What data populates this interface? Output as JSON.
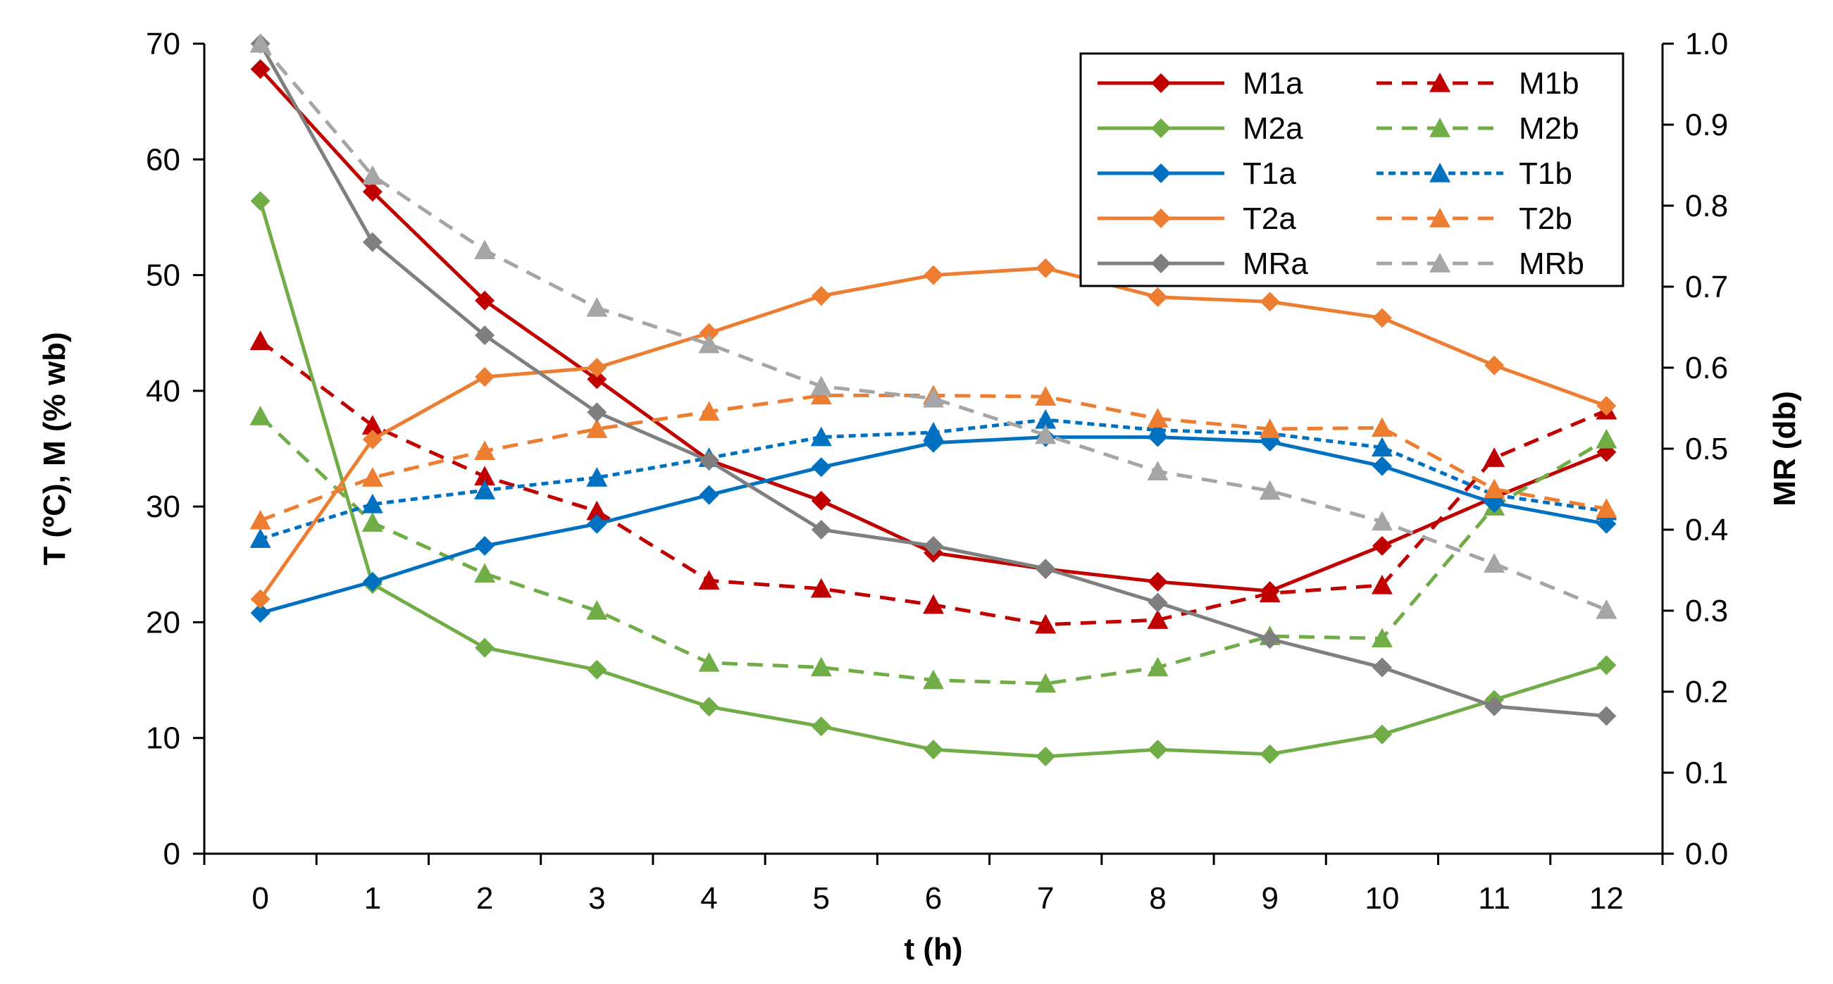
{
  "chart_data": {
    "type": "line",
    "x": [
      0,
      1,
      2,
      3,
      4,
      5,
      6,
      7,
      8,
      9,
      10,
      11,
      12
    ],
    "xlabel": "t (h)",
    "ylabel": "T (ºC), M (% wb)",
    "y2label": "MR (db)",
    "xlim": [
      -0.5,
      12.5
    ],
    "ylim": [
      0,
      70
    ],
    "y2lim": [
      0,
      1
    ],
    "xticks": [
      "0",
      "1",
      "2",
      "3",
      "4",
      "5",
      "6",
      "7",
      "8",
      "9",
      "10",
      "11",
      "12"
    ],
    "yticks": [
      "0",
      "10",
      "20",
      "30",
      "40",
      "50",
      "60",
      "70"
    ],
    "y2ticks": [
      "0.0",
      "0.1",
      "0.2",
      "0.3",
      "0.4",
      "0.5",
      "0.6",
      "0.7",
      "0.8",
      "0.9",
      "1.0"
    ],
    "grid": false,
    "legend_position": "top-right",
    "series": [
      {
        "name": "M1a",
        "axis": "left",
        "color": "#C00000",
        "dash": "solid",
        "marker": "diamond",
        "values": [
          67.8,
          57.2,
          47.8,
          41.0,
          34.0,
          30.5,
          26.0,
          24.6,
          23.5,
          22.7,
          26.6,
          30.8,
          34.7
        ]
      },
      {
        "name": "M1b",
        "axis": "left",
        "color": "#C00000",
        "dash": "dashed",
        "marker": "triangle",
        "values": [
          44.3,
          37.0,
          32.6,
          29.6,
          23.6,
          22.9,
          21.5,
          19.8,
          20.2,
          22.5,
          23.2,
          34.2,
          38.3
        ]
      },
      {
        "name": "M2a",
        "axis": "left",
        "color": "#70AD47",
        "dash": "solid",
        "marker": "diamond",
        "values": [
          56.4,
          23.3,
          17.8,
          15.9,
          12.7,
          11.0,
          9.0,
          8.4,
          9.0,
          8.6,
          10.3,
          13.3,
          16.3
        ]
      },
      {
        "name": "M2b",
        "axis": "left",
        "color": "#70AD47",
        "dash": "dashed",
        "marker": "triangle",
        "values": [
          37.8,
          28.6,
          24.2,
          21.0,
          16.5,
          16.1,
          15.0,
          14.7,
          16.1,
          18.8,
          18.6,
          30.0,
          35.8
        ]
      },
      {
        "name": "T1a",
        "axis": "left",
        "color": "#0070C0",
        "dash": "solid",
        "marker": "diamond",
        "values": [
          20.8,
          23.5,
          26.6,
          28.5,
          31.0,
          33.4,
          35.5,
          36.0,
          36.0,
          35.6,
          33.5,
          30.3,
          28.5
        ]
      },
      {
        "name": "T1b",
        "axis": "left",
        "color": "#0070C0",
        "dash": "dotted",
        "marker": "triangle",
        "values": [
          27.2,
          30.2,
          31.4,
          32.5,
          34.2,
          36.0,
          36.4,
          37.5,
          36.6,
          36.3,
          35.1,
          31.0,
          29.6
        ]
      },
      {
        "name": "T2a",
        "axis": "left",
        "color": "#ED7D31",
        "dash": "solid",
        "marker": "diamond",
        "values": [
          22.0,
          35.8,
          41.2,
          42.0,
          45.0,
          48.2,
          50.0,
          50.6,
          48.1,
          47.7,
          46.3,
          42.2,
          38.7
        ]
      },
      {
        "name": "T2b",
        "axis": "left",
        "color": "#ED7D31",
        "dash": "dashed",
        "marker": "triangle",
        "values": [
          28.8,
          32.5,
          34.8,
          36.7,
          38.2,
          39.6,
          39.6,
          39.5,
          37.6,
          36.7,
          36.8,
          31.5,
          29.8
        ]
      },
      {
        "name": "MRa",
        "axis": "right",
        "color": "#7F7F7F",
        "dash": "solid",
        "marker": "diamond",
        "values": [
          1.0,
          0.755,
          0.64,
          0.545,
          0.485,
          0.4,
          0.38,
          0.352,
          0.31,
          0.265,
          0.23,
          0.182,
          0.17
        ]
      },
      {
        "name": "MRb",
        "axis": "right",
        "color": "#A5A5A5",
        "dash": "dashed",
        "marker": "triangle",
        "values": [
          1.0,
          0.837,
          0.745,
          0.674,
          0.629,
          0.577,
          0.562,
          0.517,
          0.472,
          0.448,
          0.41,
          0.358,
          0.301
        ]
      }
    ]
  }
}
